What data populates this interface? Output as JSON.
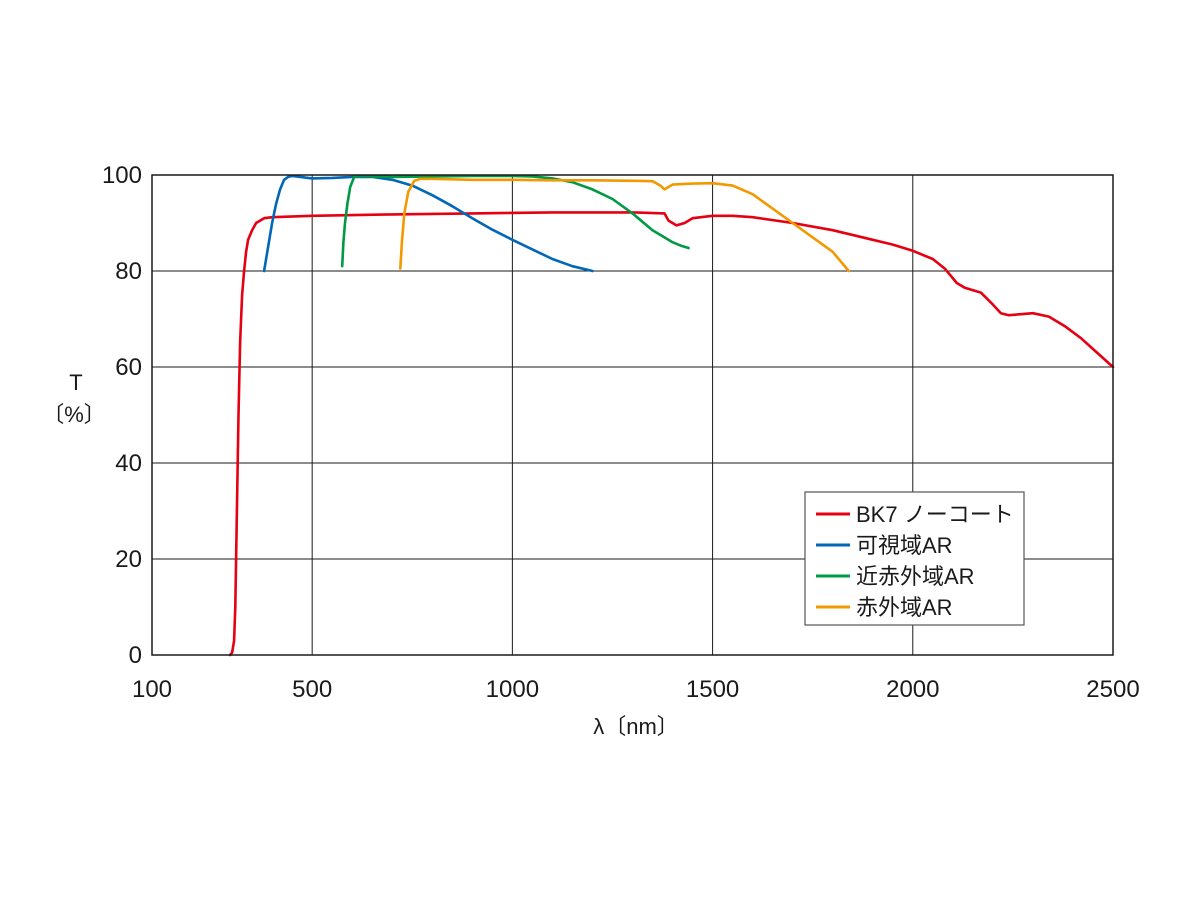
{
  "chart_data": {
    "type": "line",
    "ylabel": "T",
    "ylabel_unit": "〔%〕",
    "xlabel": "λ〔nm〕",
    "xlim": [
      100,
      2500
    ],
    "ylim": [
      0,
      100
    ],
    "x_ticks": [
      "100",
      "500",
      "1000",
      "1500",
      "2000",
      "2500"
    ],
    "x_tick_values": [
      100,
      500,
      1000,
      1500,
      2000,
      2500
    ],
    "y_ticks": [
      "0",
      "20",
      "40",
      "60",
      "80",
      "100"
    ],
    "y_tick_values": [
      0,
      20,
      40,
      60,
      80,
      100
    ],
    "grid": true,
    "legend_position": "lower-right",
    "series": [
      {
        "name": "BK7 ノーコート",
        "color": "#e60012",
        "points": [
          [
            295,
            0
          ],
          [
            300,
            0.5
          ],
          [
            305,
            3
          ],
          [
            308,
            10
          ],
          [
            312,
            30
          ],
          [
            316,
            50
          ],
          [
            320,
            65
          ],
          [
            325,
            75
          ],
          [
            330,
            80
          ],
          [
            335,
            84
          ],
          [
            340,
            86.5
          ],
          [
            350,
            88.5
          ],
          [
            360,
            90
          ],
          [
            380,
            91
          ],
          [
            400,
            91.2
          ],
          [
            500,
            91.5
          ],
          [
            700,
            91.8
          ],
          [
            900,
            92
          ],
          [
            1100,
            92.2
          ],
          [
            1300,
            92.2
          ],
          [
            1380,
            92
          ],
          [
            1390,
            90.5
          ],
          [
            1410,
            89.5
          ],
          [
            1430,
            90
          ],
          [
            1450,
            91
          ],
          [
            1500,
            91.5
          ],
          [
            1550,
            91.5
          ],
          [
            1600,
            91.2
          ],
          [
            1700,
            90
          ],
          [
            1800,
            88.5
          ],
          [
            1900,
            86.5
          ],
          [
            1950,
            85.5
          ],
          [
            2000,
            84.2
          ],
          [
            2050,
            82.5
          ],
          [
            2080,
            80.5
          ],
          [
            2110,
            77.5
          ],
          [
            2130,
            76.5
          ],
          [
            2170,
            75.5
          ],
          [
            2200,
            73
          ],
          [
            2220,
            71.2
          ],
          [
            2240,
            70.8
          ],
          [
            2270,
            71
          ],
          [
            2300,
            71.2
          ],
          [
            2340,
            70.5
          ],
          [
            2380,
            68.5
          ],
          [
            2420,
            66
          ],
          [
            2460,
            63
          ],
          [
            2500,
            60
          ]
        ]
      },
      {
        "name": "可視域AR",
        "color": "#0068b7",
        "points": [
          [
            380,
            80
          ],
          [
            390,
            85
          ],
          [
            400,
            90
          ],
          [
            410,
            94
          ],
          [
            420,
            97
          ],
          [
            430,
            99
          ],
          [
            440,
            99.6
          ],
          [
            450,
            99.8
          ],
          [
            470,
            99.6
          ],
          [
            500,
            99.3
          ],
          [
            550,
            99.4
          ],
          [
            600,
            99.6
          ],
          [
            650,
            99.6
          ],
          [
            700,
            99
          ],
          [
            750,
            97.8
          ],
          [
            800,
            95.8
          ],
          [
            850,
            93.5
          ],
          [
            900,
            91
          ],
          [
            950,
            88.6
          ],
          [
            1000,
            86.5
          ],
          [
            1050,
            84.5
          ],
          [
            1100,
            82.5
          ],
          [
            1150,
            81
          ],
          [
            1200,
            80
          ]
        ]
      },
      {
        "name": "近赤外域AR",
        "color": "#009944",
        "points": [
          [
            575,
            81
          ],
          [
            578,
            86
          ],
          [
            582,
            90
          ],
          [
            588,
            94
          ],
          [
            595,
            97.5
          ],
          [
            605,
            99.6
          ],
          [
            620,
            99.8
          ],
          [
            650,
            99.7
          ],
          [
            700,
            99.6
          ],
          [
            800,
            99.7
          ],
          [
            900,
            99.8
          ],
          [
            1000,
            99.8
          ],
          [
            1050,
            99.7
          ],
          [
            1100,
            99.3
          ],
          [
            1150,
            98.5
          ],
          [
            1200,
            97
          ],
          [
            1250,
            95
          ],
          [
            1300,
            92
          ],
          [
            1350,
            88.5
          ],
          [
            1380,
            87
          ],
          [
            1400,
            86
          ],
          [
            1420,
            85.3
          ],
          [
            1440,
            84.8
          ]
        ]
      },
      {
        "name": "赤外域AR",
        "color": "#f39800",
        "points": [
          [
            720,
            80.5
          ],
          [
            724,
            86
          ],
          [
            730,
            92
          ],
          [
            740,
            96.5
          ],
          [
            755,
            98.8
          ],
          [
            770,
            99.2
          ],
          [
            800,
            99.2
          ],
          [
            900,
            99
          ],
          [
            1000,
            99
          ],
          [
            1100,
            98.9
          ],
          [
            1200,
            98.9
          ],
          [
            1300,
            98.8
          ],
          [
            1350,
            98.7
          ],
          [
            1370,
            97.8
          ],
          [
            1380,
            97
          ],
          [
            1390,
            97.5
          ],
          [
            1400,
            98
          ],
          [
            1450,
            98.2
          ],
          [
            1500,
            98.3
          ],
          [
            1550,
            97.8
          ],
          [
            1600,
            96
          ],
          [
            1650,
            93
          ],
          [
            1700,
            90
          ],
          [
            1750,
            87
          ],
          [
            1800,
            84
          ],
          [
            1840,
            80
          ]
        ]
      }
    ]
  }
}
